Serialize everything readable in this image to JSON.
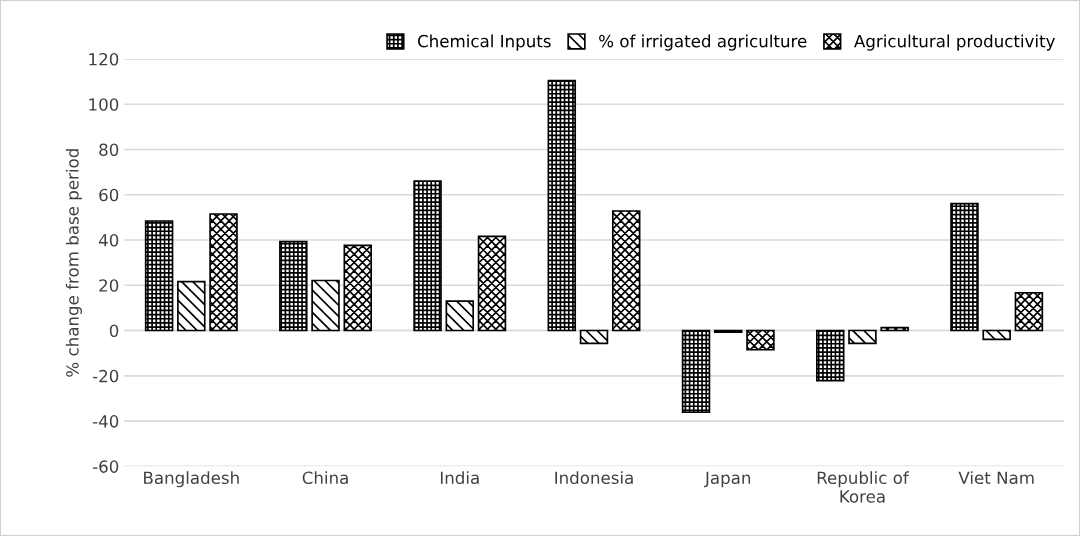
{
  "chart_data": {
    "type": "bar",
    "ylabel": "% change from base period",
    "categories": [
      "Bangladesh",
      "China",
      "India",
      "Indonesia",
      "Japan",
      "Republic of\nKorea",
      "Viet Nam"
    ],
    "series": [
      {
        "name": "Chemical Inputs",
        "color": "#000000",
        "values": [
          48.4,
          39.3,
          66,
          110.4,
          -36.1,
          -22.1,
          56.1
        ]
      },
      {
        "name": "% of irrigated agriculture",
        "color": "#000000",
        "values": [
          21.6,
          22.1,
          13,
          -5.7,
          -0.7,
          -5.7,
          -3.9
        ]
      },
      {
        "name": "Agricultural productivity",
        "color": "#000000",
        "values": [
          51.5,
          37.6,
          41.6,
          52.8,
          -8.5,
          1.3,
          16.7
        ]
      }
    ],
    "ylim": [
      -60,
      120
    ],
    "yticks": [
      -60,
      -40,
      -20,
      0,
      20,
      40,
      60,
      80,
      100,
      120
    ],
    "grid": "y",
    "legend": "top right"
  }
}
